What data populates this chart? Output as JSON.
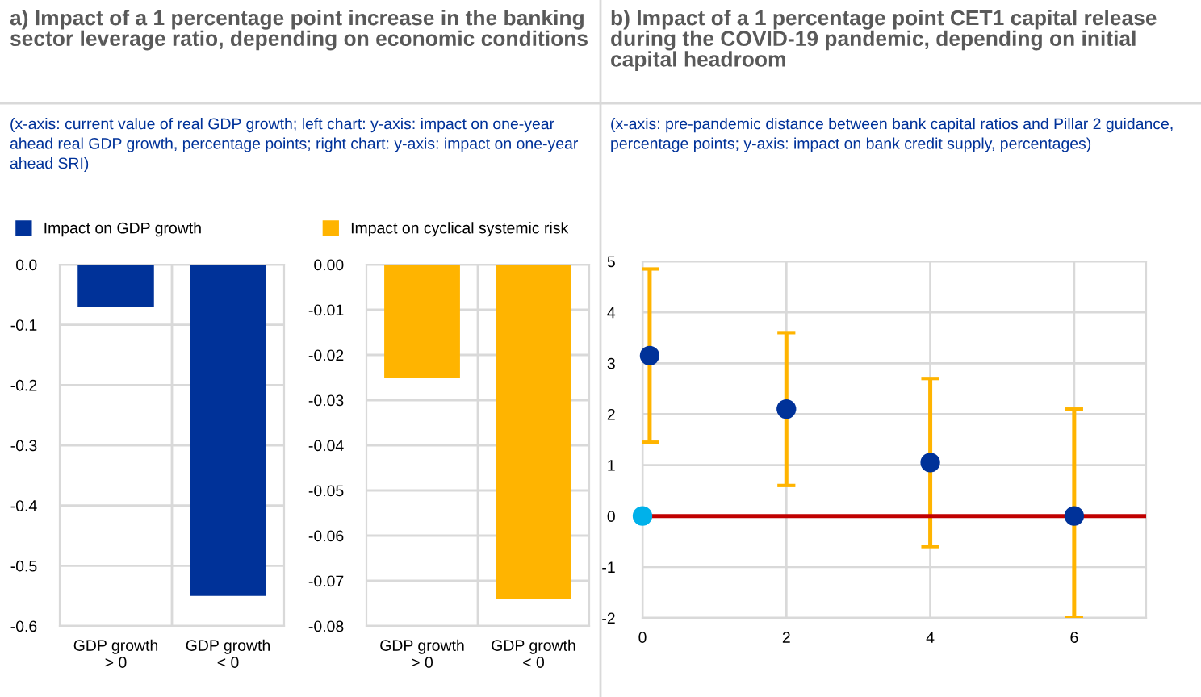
{
  "chart_data": [
    {
      "type": "bar",
      "title": "a) Impact of a 1 percentage point increase in the banking sector leverage ratio, depending on economic conditions",
      "subtitle": "(x-axis: current value of real GDP growth; left chart: y-axis: impact on one-year ahead real GDP growth, percentage points; right chart: y-axis: impact on one-year ahead SRI)",
      "categories": [
        "GDP growth\n> 0",
        "GDP growth\n< 0"
      ],
      "series": [
        {
          "name": "Impact on GDP growth",
          "color": "#003299",
          "values": [
            -0.07,
            -0.55
          ]
        }
      ],
      "ylim": [
        -0.6,
        0
      ],
      "yticks": [
        {
          "value": -0.6,
          "label": "-0.6"
        },
        {
          "value": -0.5,
          "label": "-0.5"
        },
        {
          "value": -0.4,
          "label": "-0.4"
        },
        {
          "value": -0.3,
          "label": "-0.3"
        },
        {
          "value": -0.2,
          "label": "-0.2"
        },
        {
          "value": -0.1,
          "label": "-0.1"
        },
        {
          "value": 0,
          "label": "0.0"
        }
      ],
      "grid": true,
      "legend": "top"
    },
    {
      "type": "bar",
      "categories": [
        "GDP growth\n> 0",
        "GDP growth\n< 0"
      ],
      "series": [
        {
          "name": "Impact on cyclical systemic risk",
          "color": "#ffb400",
          "values": [
            -0.025,
            -0.074
          ]
        }
      ],
      "ylim": [
        -0.08,
        0
      ],
      "yticks": [
        {
          "value": -0.08,
          "label": "-0.08"
        },
        {
          "value": -0.07,
          "label": "-0.07"
        },
        {
          "value": -0.06,
          "label": "-0.06"
        },
        {
          "value": -0.05,
          "label": "-0.05"
        },
        {
          "value": -0.04,
          "label": "-0.04"
        },
        {
          "value": -0.03,
          "label": "-0.03"
        },
        {
          "value": -0.02,
          "label": "-0.02"
        },
        {
          "value": -0.01,
          "label": "-0.01"
        },
        {
          "value": 0,
          "label": "0.00"
        }
      ],
      "grid": true,
      "legend": "top"
    },
    {
      "type": "scatter",
      "title": "b) Impact of a 1 percentage point CET1 capital release during the COVID-19 pandemic, depending on initial capital headroom",
      "subtitle": "(x-axis: pre-pandemic distance between bank capital ratios and Pillar 2 guidance, percentage points; y-axis: impact on bank credit supply, percentages)",
      "series": [
        {
          "color": "#003299",
          "x": [
            0.1,
            2,
            4,
            6
          ],
          "values": [
            3.15,
            2.1,
            1.05,
            0
          ],
          "errors": [
            [
              1.45,
              4.85
            ],
            [
              0.6,
              3.6
            ],
            [
              -0.6,
              2.7
            ],
            [
              -2,
              2.1
            ]
          ]
        },
        {
          "color": "#00b1ea",
          "x": [
            0
          ],
          "values": [
            0
          ]
        }
      ],
      "ref_lines": [
        {
          "axis": "y",
          "value": 0,
          "color": "#c00000"
        }
      ],
      "xlim": [
        0,
        7
      ],
      "xticks": [
        0,
        2,
        4,
        6
      ],
      "ylim": [
        -2,
        5
      ],
      "yticks": [
        -2,
        -1,
        0,
        1,
        2,
        3,
        4,
        5
      ],
      "grid": true,
      "marker": "circle"
    }
  ]
}
